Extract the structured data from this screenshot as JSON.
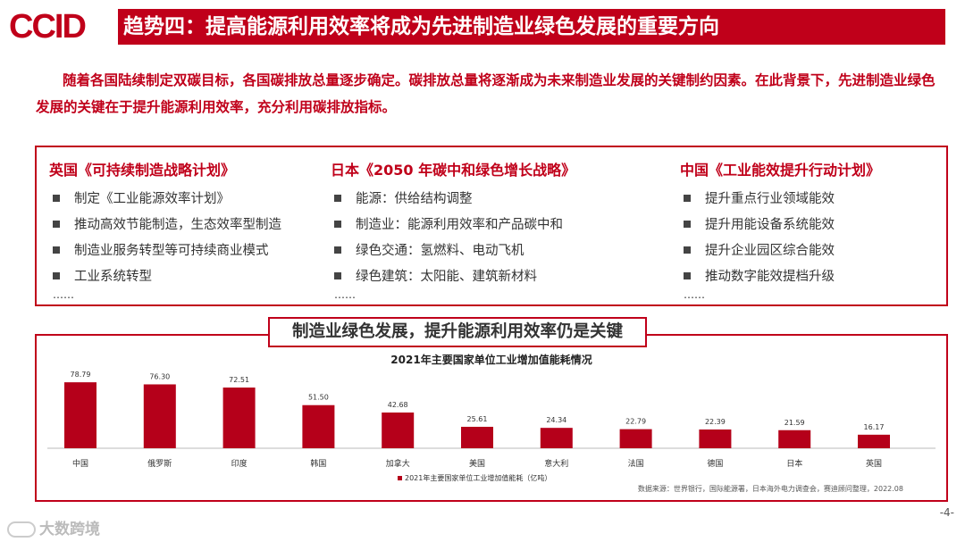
{
  "header": {
    "logo_text": "CCID",
    "title": "趋势四：提高能源利用效率将成为先进制造业绿色发展的重要方向"
  },
  "intro": "随着各国陆续制定双碳目标，各国碳排放总量逐步确定。碳排放总量将逐渐成为未来制造业发展的关键制约因素。在此背景下，先进制造业绿色发展的关键在于提升能源利用效率，充分利用碳排放指标。",
  "plans": [
    {
      "title": "英国《可持续制造战略计划》",
      "items": [
        "制定《工业能源效率计划》",
        "推动高效节能制造，生态效率型制造",
        "制造业服务转型等可持续商业模式",
        "工业系统转型"
      ],
      "more": "……"
    },
    {
      "title": "日本《2050 年碳中和绿色增长战略》",
      "items": [
        "能源：供给结构调整",
        "制造业：能源利用效率和产品碳中和",
        "绿色交通：氢燃料、电动飞机",
        "绿色建筑：太阳能、建筑新材料"
      ],
      "more": "……"
    },
    {
      "title": "中国《工业能效提升行动计划》",
      "items": [
        "提升重点行业领域能效",
        "提升用能设备系统能效",
        "提升企业园区综合能效",
        "推动数字能效提档升级"
      ],
      "more": "……"
    }
  ],
  "section_title": "制造业绿色发展，提升能源利用效率仍是关键",
  "chart_data": {
    "type": "bar",
    "title": "2021年主要国家单位工业增加值能耗情况",
    "categories": [
      "中国",
      "俄罗斯",
      "印度",
      "韩国",
      "加拿大",
      "美国",
      "意大利",
      "法国",
      "德国",
      "日本",
      "英国"
    ],
    "values": [
      78.79,
      76.3,
      72.51,
      51.5,
      42.68,
      25.61,
      24.34,
      22.79,
      22.39,
      21.59,
      16.17
    ],
    "value_labels": [
      "78.79",
      "76.30",
      "72.51",
      "51.50",
      "42.68",
      "25.61",
      "24.34",
      "22.79",
      "22.39",
      "21.59",
      "16.17"
    ],
    "series_name": "2021年主要国家单位工业增加值能耗（亿吨）",
    "ylim": [
      0,
      80
    ],
    "color": "#b5001a",
    "source": "数据来源：世界银行，国际能源署，日本海外电力调查会，赛迪顾问整理，2022.08"
  },
  "footer": {
    "brand": "大数跨境",
    "page": "-4-"
  },
  "colors": {
    "accent": "#c0001a"
  }
}
